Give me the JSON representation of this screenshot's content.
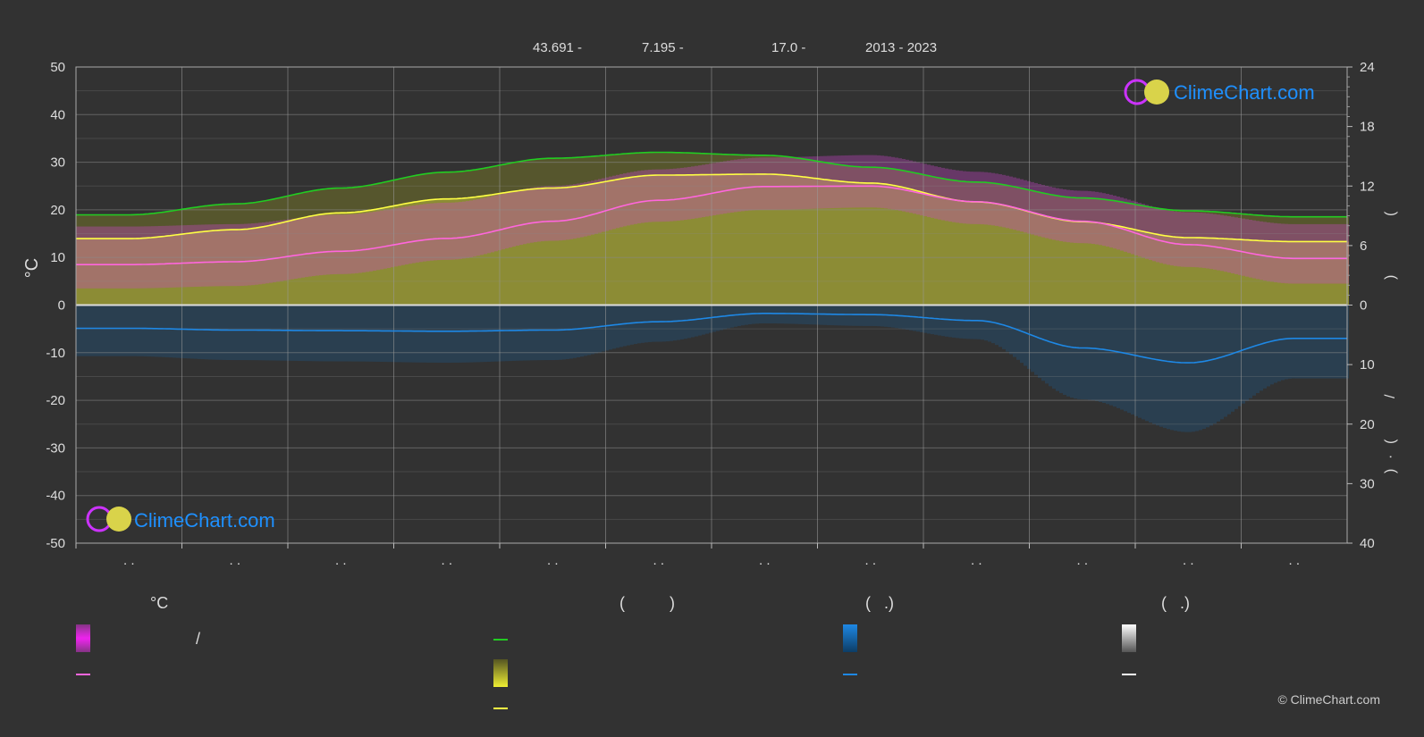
{
  "header": {
    "lat": "43.691 -",
    "lon": "7.195 -",
    "elev": "17.0 -",
    "years": "2013 - 2023"
  },
  "colors": {
    "background": "#323232",
    "sunshine_max": "#22cc22",
    "sunshine_avg": "#ffff44",
    "temp_mean": "#ff66dd",
    "precip": "#1e88e5",
    "brand": "#1e90ff",
    "snow": "#ffffff"
  },
  "chart_data": {
    "type": "line",
    "left_axis": {
      "label": "°C",
      "ylim": [
        -50,
        50
      ],
      "ticks": [
        "50",
        "40",
        "30",
        "20",
        "10",
        "0",
        "-10",
        "-20",
        "-30",
        "-40",
        "-50"
      ]
    },
    "right_axis_top": {
      "ylim": [
        0,
        24
      ],
      "ticks": [
        "24",
        "18",
        "12",
        "6",
        "0"
      ],
      "label_glyphs": [
        "(",
        ")"
      ]
    },
    "right_axis_bottom": {
      "ylim": [
        0,
        40
      ],
      "ticks": [
        "0",
        "10",
        "20",
        "30",
        "40"
      ],
      "label_glyphs": [
        "/",
        "(",
        "·",
        ")"
      ]
    },
    "x_tick_labels": [
      ". .",
      ". .",
      ". .",
      ". .",
      ". .",
      ". .",
      ". .",
      ". .",
      ". .",
      ". .",
      ". .",
      ". ."
    ],
    "months": 12,
    "series": [
      {
        "key": "daylight",
        "unit": "h",
        "color": "#22cc22",
        "values": [
          9.1,
          10.2,
          11.8,
          13.4,
          14.8,
          15.4,
          15.1,
          13.9,
          12.4,
          10.8,
          9.5,
          8.9
        ]
      },
      {
        "key": "sunshine",
        "unit": "h",
        "color": "#ffff44",
        "values": [
          6.7,
          7.6,
          9.3,
          10.7,
          11.8,
          13.1,
          13.2,
          12.3,
          10.4,
          8.4,
          6.8,
          6.4
        ]
      },
      {
        "key": "temp_mean",
        "unit": "°C",
        "color": "#ff66dd",
        "values": [
          8.5,
          9.1,
          11.3,
          14.0,
          17.6,
          22.0,
          24.9,
          25.0,
          21.7,
          17.6,
          12.7,
          9.8
        ]
      },
      {
        "key": "temp_max",
        "unit": "°C",
        "values": [
          16.5,
          17.0,
          19.0,
          21.5,
          25.0,
          28.5,
          31.0,
          31.5,
          28.0,
          24.0,
          19.5,
          17.0
        ]
      },
      {
        "key": "temp_min",
        "unit": "°C",
        "values": [
          3.5,
          4.0,
          6.5,
          9.5,
          13.5,
          17.5,
          20.0,
          20.5,
          17.0,
          13.0,
          8.0,
          4.5
        ]
      },
      {
        "key": "precip",
        "unit": "mm",
        "color": "#1e88e5",
        "values": [
          3.9,
          4.2,
          4.3,
          4.4,
          4.2,
          2.8,
          1.4,
          1.6,
          2.6,
          7.2,
          9.7,
          5.6
        ]
      },
      {
        "key": "snow",
        "unit": "mm",
        "color": "#ffffff",
        "values": [
          0.0,
          0.0,
          0.0,
          0.0,
          0.0,
          0.0,
          0.0,
          0.0,
          0.0,
          0.0,
          0.0,
          0.0
        ]
      }
    ]
  },
  "logo_top": {
    "text": "ClimeChart.com"
  },
  "logo_bottom": {
    "text": "ClimeChart.com"
  },
  "legend": {
    "temp_header": "°C",
    "sun_header": "(          )",
    "rain_header": "(   .)",
    "snow_header": "(   .)",
    "temp_range_text": "/"
  },
  "copyright": "© ClimeChart.com"
}
